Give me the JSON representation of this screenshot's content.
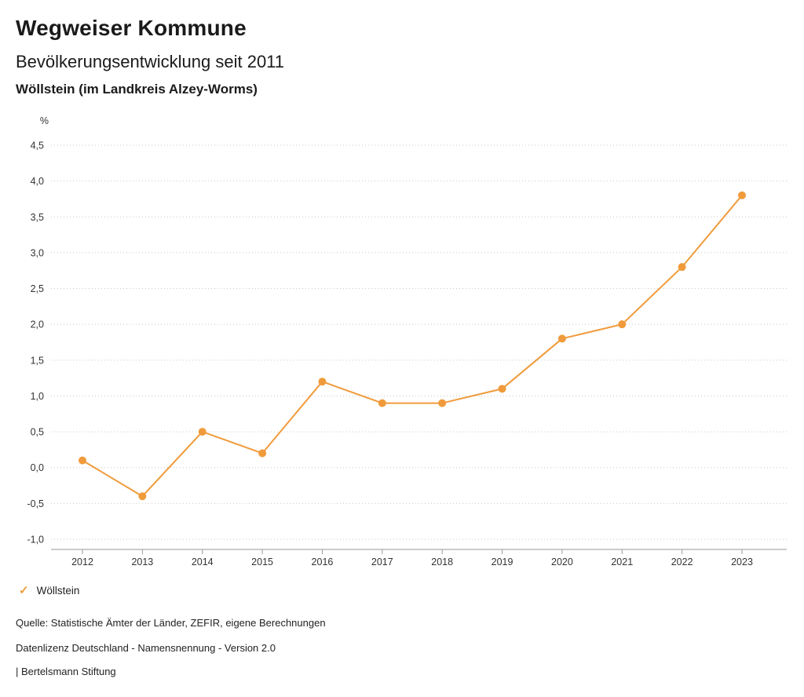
{
  "header": {
    "title": "Wegweiser Kommune",
    "subtitle": "Bevölkerungsentwicklung seit 2011",
    "region": "Wöllstein (im Landkreis Alzey-Worms)"
  },
  "chart_data": {
    "type": "line",
    "title": "Bevölkerungsentwicklung seit 2011",
    "unit_label": "%",
    "xlabel": "",
    "ylabel": "%",
    "categories": [
      "2012",
      "2013",
      "2014",
      "2015",
      "2016",
      "2017",
      "2018",
      "2019",
      "2020",
      "2021",
      "2022",
      "2023"
    ],
    "series": [
      {
        "name": "Wöllstein",
        "color": "#f09b3b",
        "values": [
          0.1,
          -0.4,
          0.5,
          0.2,
          1.2,
          0.9,
          0.9,
          1.1,
          1.8,
          2.0,
          2.8,
          3.8
        ]
      }
    ],
    "ylim": [
      -1.0,
      4.5
    ],
    "ytick_step": 0.5,
    "decimal_separator": ",",
    "grid": "horizontal-dotted",
    "legend_position": "bottom-left"
  },
  "legend": {
    "items": [
      {
        "label": "Wöllstein",
        "color": "#f09b3b",
        "marker": "check"
      }
    ]
  },
  "footer": {
    "source": "Quelle: Statistische Ämter der Länder, ZEFIR, eigene Berechnungen",
    "license": "Datenlizenz Deutschland - Namensnennung - Version 2.0",
    "attribution": "| Bertelsmann Stiftung"
  },
  "colors": {
    "series_orange": "#f09b3b",
    "gridline": "#c9c9c9",
    "axis": "#9a9a9a",
    "text": "#1a1a1a"
  }
}
